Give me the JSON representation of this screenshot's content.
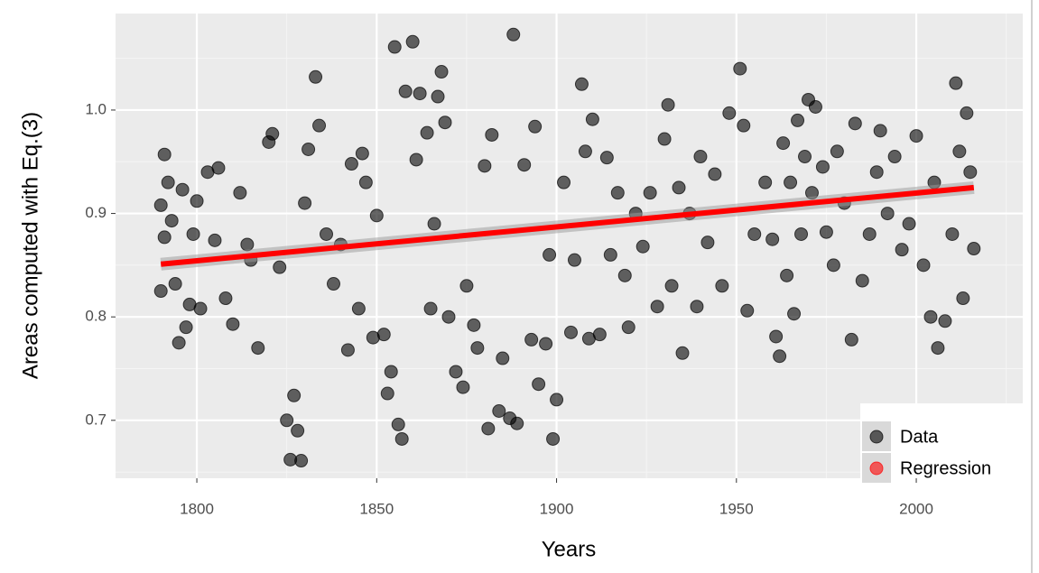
{
  "chart_data": {
    "type": "scatter",
    "x_label": "Years",
    "y_label": "Areas computed with Eq.(3)",
    "xlim": [
      1777.4,
      2029.6
    ],
    "ylim": [
      0.644,
      1.0933
    ],
    "xticks": [
      1800,
      1850,
      1900,
      1950,
      2000
    ],
    "yticks": [
      0.7,
      0.8,
      0.9,
      {
        "value": 1,
        "label": "1.0"
      }
    ],
    "grid": true,
    "legend": "bottom-right",
    "series": [
      {
        "name": "Data",
        "style": "points",
        "color": "#000000",
        "x": [
          1790,
          1790,
          1791,
          1791,
          1792,
          1793,
          1794,
          1795,
          1796,
          1797,
          1798,
          1799,
          1800,
          1801,
          1803,
          1805,
          1806,
          1808,
          1810,
          1812,
          1814,
          1815,
          1817,
          1820,
          1821,
          1823,
          1825,
          1826,
          1827,
          1828,
          1829,
          1830,
          1831,
          1833,
          1834,
          1836,
          1838,
          1840,
          1842,
          1843,
          1845,
          1846,
          1847,
          1849,
          1850,
          1852,
          1853,
          1854,
          1855,
          1856,
          1857,
          1858,
          1860,
          1861,
          1862,
          1864,
          1865,
          1866,
          1867,
          1868,
          1869,
          1870,
          1872,
          1874,
          1875,
          1877,
          1878,
          1880,
          1881,
          1882,
          1884,
          1885,
          1887,
          1888,
          1889,
          1891,
          1893,
          1894,
          1895,
          1897,
          1898,
          1899,
          1900,
          1902,
          1904,
          1905,
          1907,
          1908,
          1909,
          1910,
          1912,
          1914,
          1915,
          1917,
          1919,
          1920,
          1922,
          1924,
          1926,
          1928,
          1930,
          1931,
          1932,
          1934,
          1935,
          1937,
          1939,
          1940,
          1942,
          1944,
          1946,
          1948,
          1951,
          1952,
          1953,
          1955,
          1958,
          1960,
          1961,
          1962,
          1963,
          1964,
          1965,
          1966,
          1967,
          1968,
          1969,
          1970,
          1971,
          1972,
          1974,
          1975,
          1977,
          1978,
          1980,
          1982,
          1983,
          1985,
          1987,
          1989,
          1990,
          1992,
          1994,
          1996,
          1998,
          2000,
          2002,
          2004,
          2005,
          2006,
          2008,
          2010,
          2011,
          2012,
          2013,
          2014,
          2015,
          2016
        ],
        "values": [
          0.908,
          0.825,
          0.877,
          0.957,
          0.93,
          0.893,
          0.832,
          0.775,
          0.923,
          0.79,
          0.812,
          0.88,
          0.912,
          0.808,
          0.94,
          0.874,
          0.944,
          0.818,
          0.793,
          0.92,
          0.87,
          0.855,
          0.77,
          0.969,
          0.977,
          0.848,
          0.7,
          0.662,
          0.724,
          0.69,
          0.661,
          0.91,
          0.962,
          1.032,
          0.985,
          0.88,
          0.832,
          0.87,
          0.768,
          0.948,
          0.808,
          0.958,
          0.93,
          0.78,
          0.898,
          0.783,
          0.726,
          0.747,
          1.061,
          0.696,
          0.682,
          1.018,
          1.066,
          0.952,
          1.016,
          0.978,
          0.808,
          0.89,
          1.013,
          1.037,
          0.988,
          0.8,
          0.747,
          0.732,
          0.83,
          0.792,
          0.77,
          0.946,
          0.692,
          0.976,
          0.709,
          0.76,
          0.702,
          1.073,
          0.697,
          0.947,
          0.778,
          0.984,
          0.735,
          0.774,
          0.86,
          0.682,
          0.72,
          0.93,
          0.785,
          0.855,
          1.025,
          0.96,
          0.779,
          0.991,
          0.783,
          0.954,
          0.86,
          0.92,
          0.84,
          0.79,
          0.9,
          0.868,
          0.92,
          0.81,
          0.972,
          1.005,
          0.83,
          0.925,
          0.765,
          0.9,
          0.81,
          0.955,
          0.872,
          0.938,
          0.83,
          0.997,
          1.04,
          0.985,
          0.806,
          0.88,
          0.93,
          0.875,
          0.781,
          0.762,
          0.968,
          0.84,
          0.93,
          0.803,
          0.99,
          0.88,
          0.955,
          1.01,
          0.92,
          1.003,
          0.945,
          0.882,
          0.85,
          0.96,
          0.91,
          0.778,
          0.987,
          0.835,
          0.88,
          0.94,
          0.98,
          0.9,
          0.955,
          0.865,
          0.89,
          0.975,
          0.85,
          0.8,
          0.93,
          0.77,
          0.796,
          0.88,
          1.026,
          0.96,
          0.818,
          0.997,
          0.94,
          0.866
        ]
      },
      {
        "name": "Regression",
        "style": "line",
        "color": "#ff0000",
        "x": [
          1790,
          2016
        ],
        "values": [
          0.851,
          0.925
        ]
      }
    ]
  }
}
